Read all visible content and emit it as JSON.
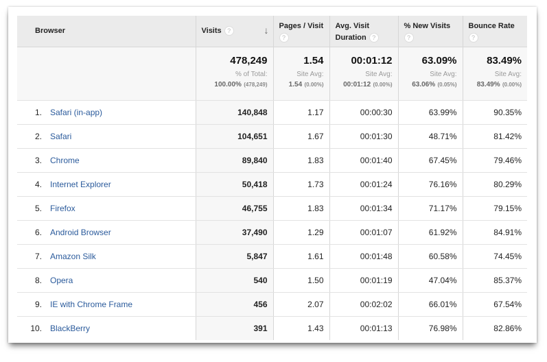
{
  "columns": {
    "browser": "Browser",
    "visits": "Visits",
    "pages_per_visit": "Pages / Visit",
    "avg_duration": "Avg. Visit Duration",
    "new_visits": "% New Visits",
    "bounce_rate": "Bounce Rate",
    "help_glyph": "?",
    "sort_glyph": "↓"
  },
  "summary": {
    "visits": {
      "value": "478,249",
      "label": "% of Total:",
      "sub": "100.00%",
      "sub_paren": "(478,249)"
    },
    "pages_per_visit": {
      "value": "1.54",
      "label": "Site Avg:",
      "sub": "1.54",
      "sub_paren": "(0.00%)"
    },
    "avg_duration": {
      "value": "00:01:12",
      "label": "Site Avg:",
      "sub": "00:01:12",
      "sub_paren": "(0.00%)"
    },
    "new_visits": {
      "value": "63.09%",
      "label": "Site Avg:",
      "sub": "63.06%",
      "sub_paren": "(0.05%)"
    },
    "bounce_rate": {
      "value": "83.49%",
      "label": "Site Avg:",
      "sub": "83.49%",
      "sub_paren": "(0.00%)"
    }
  },
  "rows": [
    {
      "rank": "1.",
      "browser": "Safari (in-app)",
      "visits": "140,848",
      "pages": "1.17",
      "duration": "00:00:30",
      "new": "63.99%",
      "bounce": "90.35%"
    },
    {
      "rank": "2.",
      "browser": "Safari",
      "visits": "104,651",
      "pages": "1.67",
      "duration": "00:01:30",
      "new": "48.71%",
      "bounce": "81.42%"
    },
    {
      "rank": "3.",
      "browser": "Chrome",
      "visits": "89,840",
      "pages": "1.83",
      "duration": "00:01:40",
      "new": "67.45%",
      "bounce": "79.46%"
    },
    {
      "rank": "4.",
      "browser": "Internet Explorer",
      "visits": "50,418",
      "pages": "1.73",
      "duration": "00:01:24",
      "new": "76.16%",
      "bounce": "80.29%"
    },
    {
      "rank": "5.",
      "browser": "Firefox",
      "visits": "46,755",
      "pages": "1.83",
      "duration": "00:01:34",
      "new": "71.17%",
      "bounce": "79.15%"
    },
    {
      "rank": "6.",
      "browser": "Android Browser",
      "visits": "37,490",
      "pages": "1.29",
      "duration": "00:01:07",
      "new": "61.92%",
      "bounce": "84.91%"
    },
    {
      "rank": "7.",
      "browser": "Amazon Silk",
      "visits": "5,847",
      "pages": "1.61",
      "duration": "00:01:48",
      "new": "60.58%",
      "bounce": "74.45%"
    },
    {
      "rank": "8.",
      "browser": "Opera",
      "visits": "540",
      "pages": "1.50",
      "duration": "00:01:19",
      "new": "47.04%",
      "bounce": "85.37%"
    },
    {
      "rank": "9.",
      "browser": "IE with Chrome Frame",
      "visits": "456",
      "pages": "2.07",
      "duration": "00:02:02",
      "new": "66.01%",
      "bounce": "67.54%"
    },
    {
      "rank": "10.",
      "browser": "BlackBerry",
      "visits": "391",
      "pages": "1.43",
      "duration": "00:01:13",
      "new": "76.98%",
      "bounce": "82.86%"
    }
  ]
}
